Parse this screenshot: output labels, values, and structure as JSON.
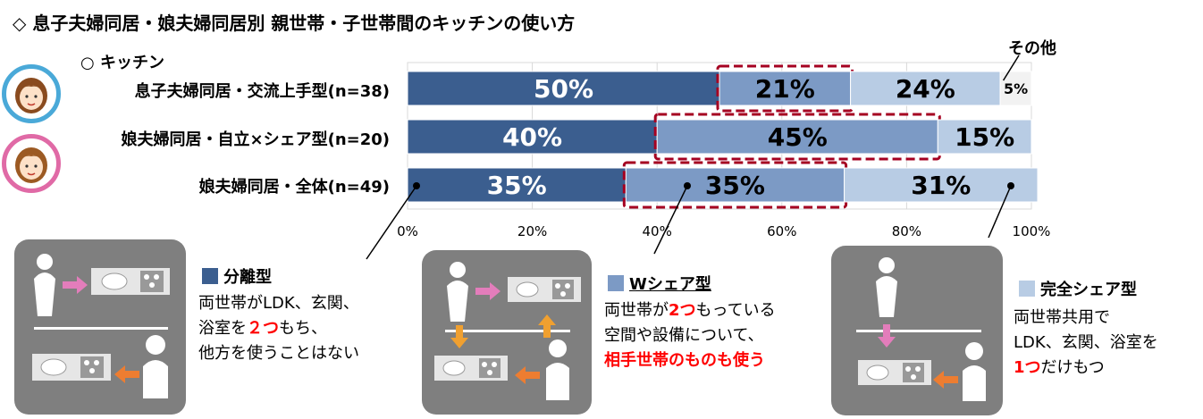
{
  "header": {
    "title": "◇ 息子夫婦同居・娘夫婦同居別 親世帯・子世帯間のキッチンの使い方",
    "subtitle": "○ キッチン",
    "other_label": "その他"
  },
  "colors": {
    "separate": "#3b5e8f",
    "wshare": "#7c9ac5",
    "fullshare": "#b8cce4",
    "other": "#f2f2f2",
    "highlight": "#a50021",
    "red_text": "#ff0000",
    "panel": "#7f7f7f",
    "avatar_son": "#4aa9d8",
    "avatar_daughter": "#e06aa6"
  },
  "chart_data": {
    "type": "bar",
    "orientation": "horizontal",
    "stacked": true,
    "categories": [
      "息子夫婦同居・交流上手型(n=38)",
      "娘夫婦同居・自立×シェア型(n=20)",
      "娘夫婦同居・全体(n=49)"
    ],
    "series": [
      {
        "name": "分離型",
        "values": [
          50,
          40,
          35
        ],
        "labels": [
          "50%",
          "40%",
          "35%"
        ]
      },
      {
        "name": "Wシェア型",
        "values": [
          21,
          45,
          35
        ],
        "labels": [
          "21%",
          "45%",
          "35%"
        ]
      },
      {
        "name": "完全シェア型",
        "values": [
          24,
          15,
          31
        ],
        "labels": [
          "24%",
          "15%",
          "31%"
        ]
      },
      {
        "name": "その他",
        "values": [
          5,
          0,
          0
        ],
        "labels": [
          "5%",
          "",
          ""
        ]
      }
    ],
    "xlim": [
      0,
      100
    ],
    "xticks": [
      "0%",
      "20%",
      "40%",
      "60%",
      "80%",
      "100%"
    ],
    "grid": true,
    "highlighted_series": "Wシェア型"
  },
  "legend": [
    {
      "title": "分離型",
      "lines": [
        [
          "両世帯がLDK、玄関、"
        ],
        [
          "浴室を",
          "２つ",
          "もち、"
        ],
        [
          "他方を使うことはない"
        ]
      ]
    },
    {
      "title": "Wシェア型",
      "lines": [
        [
          "両世帯が",
          "2つ",
          "もっている"
        ],
        [
          "空間や設備について、"
        ],
        [
          "",
          "相手世帯のものも使う",
          ""
        ]
      ]
    },
    {
      "title": "完全シェア型",
      "lines": [
        [
          "両世帯共用で"
        ],
        [
          "LDK、玄関、浴室を"
        ],
        [
          "",
          "1つ",
          "だけもつ"
        ]
      ]
    }
  ]
}
